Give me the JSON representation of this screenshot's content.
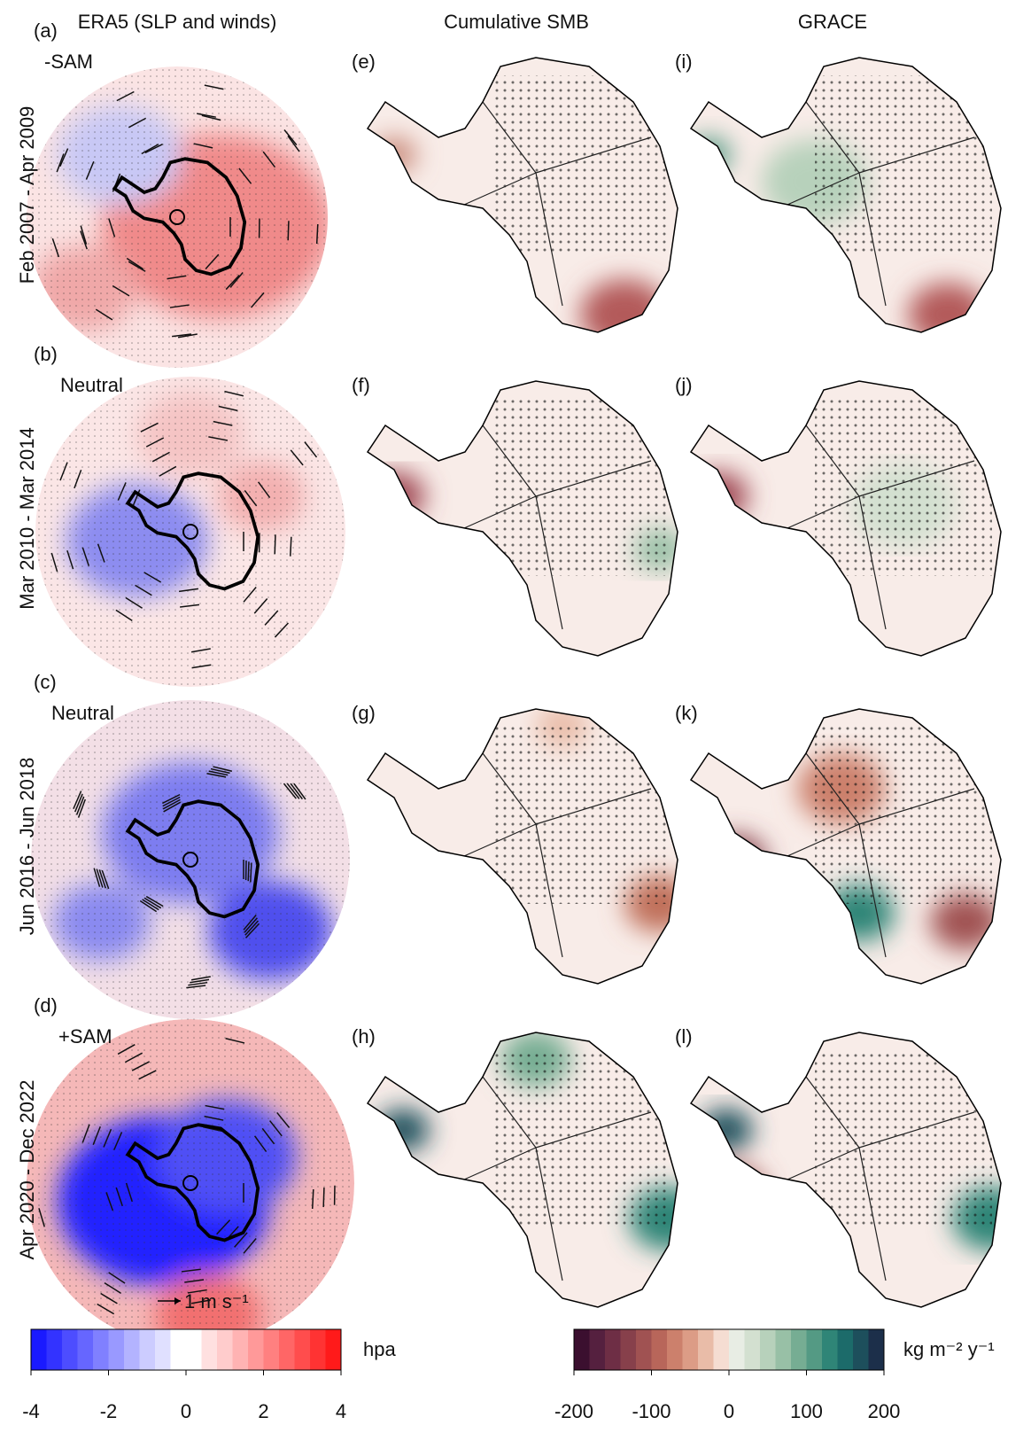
{
  "column_titles": [
    "ERA5 (SLP and winds)",
    "Cumulative SMB",
    "GRACE"
  ],
  "rows": [
    {
      "era5_label": "(a)",
      "phase": "-SAM",
      "period": "Feb 2007 - Apr 2009",
      "smb_label": "(e)",
      "grace_label": "(i)"
    },
    {
      "era5_label": "(b)",
      "phase": "Neutral",
      "period": "Mar 2010 - Mar 2014",
      "smb_label": "(f)",
      "grace_label": "(j)"
    },
    {
      "era5_label": "(c)",
      "phase": "Neutral",
      "period": "Jun 2016 - Jun 2018",
      "smb_label": "(g)",
      "grace_label": "(k)"
    },
    {
      "era5_label": "(d)",
      "phase": "+SAM",
      "period": "Apr 2020 - Dec 2022",
      "smb_label": "(h)",
      "grace_label": "(l)"
    }
  ],
  "wind_scale": "1 m s⁻¹",
  "colorbars": [
    {
      "unit": "hpa",
      "range": [
        -4,
        4
      ],
      "ticks": [
        -4,
        -2,
        0,
        2,
        4
      ],
      "colors": [
        "#1a1aff",
        "#3333ff",
        "#4d4dff",
        "#6666ff",
        "#8080ff",
        "#9999ff",
        "#b3b3ff",
        "#ccccff",
        "#e0e0ff",
        "#ffffff",
        "#ffffff",
        "#ffe0e0",
        "#ffcccc",
        "#ffb3b3",
        "#ff9999",
        "#ff8080",
        "#ff6666",
        "#ff4d4d",
        "#ff3333",
        "#ff1a1a"
      ]
    },
    {
      "unit": "kg m⁻² y⁻¹",
      "range": [
        -200,
        200
      ],
      "ticks": [
        -200,
        -100,
        0,
        100,
        200
      ],
      "colors": [
        "#3b0f2f",
        "#55203f",
        "#6e2e45",
        "#87404b",
        "#a05252",
        "#b8665a",
        "#cc806c",
        "#dc9c86",
        "#e9bca8",
        "#f5ddd2",
        "#e8ede4",
        "#d3e0d0",
        "#b7d1bb",
        "#98c0a6",
        "#76ad93",
        "#549a84",
        "#2f8577",
        "#1c6b6a",
        "#1d4f5c",
        "#1c2f4a"
      ]
    }
  ]
}
